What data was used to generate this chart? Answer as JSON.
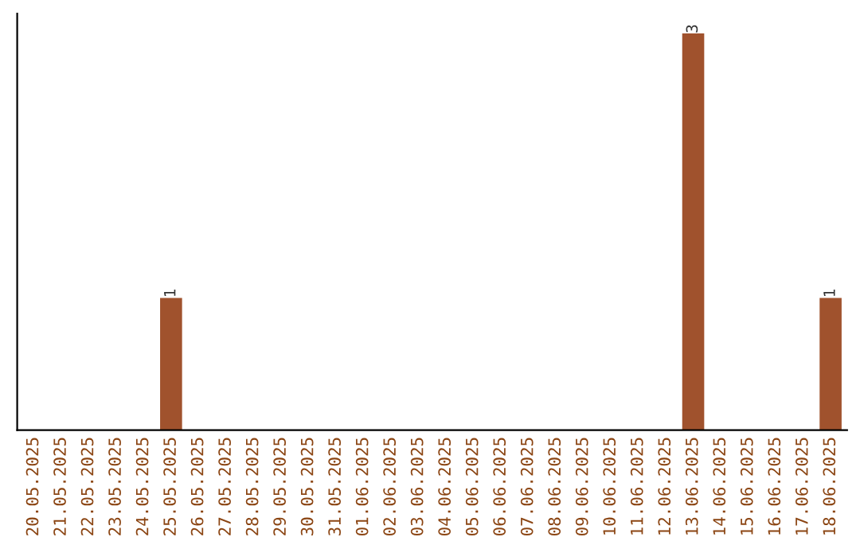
{
  "chart_data": {
    "type": "bar",
    "categories": [
      "20.05.2025",
      "21.05.2025",
      "22.05.2025",
      "23.05.2025",
      "24.05.2025",
      "25.05.2025",
      "26.05.2025",
      "27.05.2025",
      "28.05.2025",
      "29.05.2025",
      "30.05.2025",
      "31.05.2025",
      "01.06.2025",
      "02.06.2025",
      "03.06.2025",
      "04.06.2025",
      "05.06.2025",
      "06.06.2025",
      "07.06.2025",
      "08.06.2025",
      "09.06.2025",
      "10.06.2025",
      "11.06.2025",
      "12.06.2025",
      "13.06.2025",
      "14.06.2025",
      "15.06.2025",
      "16.06.2025",
      "17.06.2025",
      "18.06.2025"
    ],
    "values": [
      0,
      0,
      0,
      0,
      0,
      1,
      0,
      0,
      0,
      0,
      0,
      0,
      0,
      0,
      0,
      0,
      0,
      0,
      0,
      0,
      0,
      0,
      0,
      0,
      3,
      0,
      0,
      0,
      0,
      1
    ],
    "value_labels": [
      null,
      null,
      null,
      null,
      null,
      "1",
      null,
      null,
      null,
      null,
      null,
      null,
      null,
      null,
      null,
      null,
      null,
      null,
      null,
      null,
      null,
      null,
      null,
      null,
      "3",
      null,
      null,
      null,
      null,
      "1"
    ],
    "color": "#a0522d",
    "grid": false,
    "legend": false
  }
}
